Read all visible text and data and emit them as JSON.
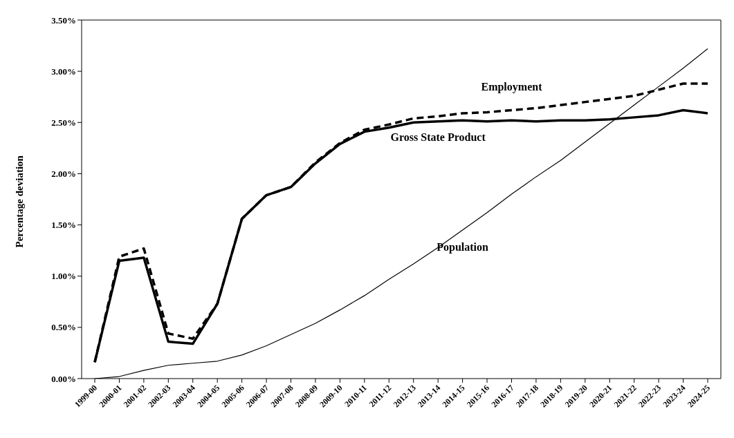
{
  "chart_data": {
    "type": "line",
    "ylabel": "Percentage deviation",
    "categories": [
      "1999-00",
      "2000-01",
      "2001-02",
      "2002-03",
      "2003-04",
      "2004-05",
      "2005-06",
      "2006-07",
      "2007-08",
      "2008-09",
      "2009-10",
      "2010-11",
      "2011-12",
      "2012-13",
      "2013-14",
      "2014-15",
      "2015-16",
      "2016-17",
      "2017-18",
      "2018-19",
      "2019-20",
      "2020-21",
      "2021-22",
      "2022-23",
      "2023-24",
      "2024-25"
    ],
    "series": [
      {
        "name": "Employment",
        "color": "#000000",
        "line_style": "dashed",
        "values": [
          0.16,
          1.19,
          1.27,
          0.44,
          0.39,
          0.73,
          1.56,
          1.79,
          1.87,
          2.11,
          2.3,
          2.43,
          2.48,
          2.54,
          2.56,
          2.59,
          2.6,
          2.62,
          2.64,
          2.67,
          2.7,
          2.73,
          2.76,
          2.82,
          2.88,
          2.88
        ]
      },
      {
        "name": "Gross State Product",
        "color": "#000000",
        "line_style": "solid",
        "values": [
          0.16,
          1.15,
          1.18,
          0.36,
          0.34,
          0.73,
          1.56,
          1.79,
          1.87,
          2.1,
          2.29,
          2.41,
          2.45,
          2.5,
          2.51,
          2.52,
          2.51,
          2.52,
          2.51,
          2.52,
          2.52,
          2.53,
          2.55,
          2.57,
          2.62,
          2.59
        ]
      },
      {
        "name": "Population",
        "color": "#000000",
        "line_style": "solid",
        "values": [
          0,
          0.02,
          0.08,
          0.13,
          0.15,
          0.17,
          0.23,
          0.32,
          0.43,
          0.54,
          0.67,
          0.81,
          0.97,
          1.12,
          1.28,
          1.45,
          1.62,
          1.8,
          1.97,
          2.13,
          2.31,
          2.49,
          2.67,
          2.85,
          3.03,
          3.22
        ]
      }
    ],
    "ylim": [
      0,
      3.5
    ],
    "yticks": [
      {
        "value": 0,
        "label": "0.00%"
      },
      {
        "value": 0.5,
        "label": "0.50%"
      },
      {
        "value": 1,
        "label": "1.00%"
      },
      {
        "value": 1.5,
        "label": "1.50%"
      },
      {
        "value": 2,
        "label": "2.00%"
      },
      {
        "value": 2.5,
        "label": "2.50%"
      },
      {
        "value": 3,
        "label": "3.00%"
      },
      {
        "value": 3.5,
        "label": "3.50%"
      }
    ],
    "grid": false,
    "legend": false,
    "marker": "none"
  }
}
